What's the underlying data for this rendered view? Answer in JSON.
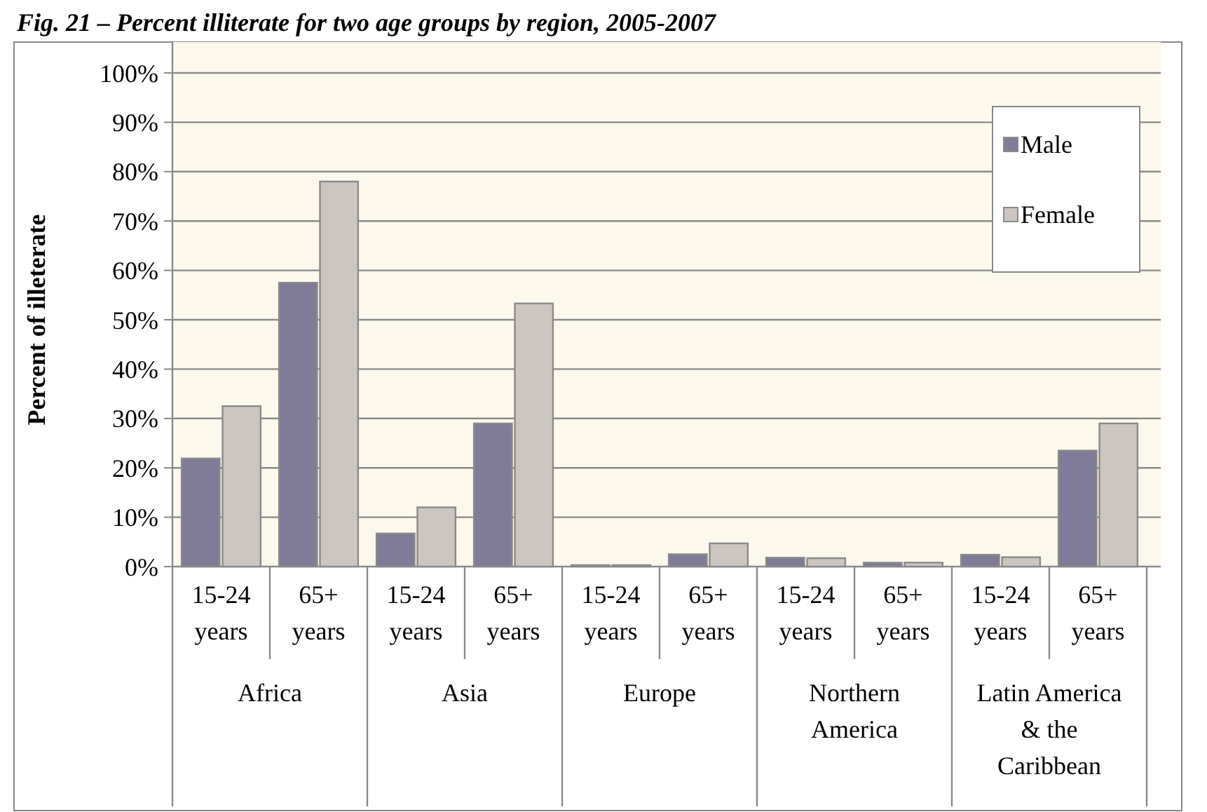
{
  "chart_data": {
    "type": "bar",
    "title": "Fig. 21 – Percent illiterate for two age groups by region, 2005-2007",
    "ylabel": "Percent of illeterate",
    "categories": [
      "15-24 years",
      "65+ years",
      "15-24 years",
      "65+ years",
      "15-24 years",
      "65+ years",
      "15-24 years",
      "65+ years",
      "15-24 years",
      "65+ years"
    ],
    "annotations": [
      "Africa",
      "Asia",
      "Europe",
      "Northern America",
      "Latin America & the Caribbean"
    ],
    "series": [
      {
        "name": "Male",
        "color": "#7f7b99",
        "values": [
          21.9,
          57.5,
          6.7,
          29.0,
          0.3,
          2.5,
          1.8,
          0.8,
          2.4,
          23.5
        ]
      },
      {
        "name": "Female",
        "color": "#ccc5c0",
        "values": [
          32.5,
          78.0,
          12.0,
          53.3,
          0.3,
          4.7,
          1.7,
          0.8,
          1.9,
          29.0
        ]
      }
    ],
    "ylim": [
      0,
      100
    ],
    "yticks": [
      {
        "value": 0,
        "label": "0%"
      },
      {
        "value": 10,
        "label": "10%"
      },
      {
        "value": 20,
        "label": "20%"
      },
      {
        "value": 30,
        "label": "30%"
      },
      {
        "value": 40,
        "label": "40%"
      },
      {
        "value": 50,
        "label": "50%"
      },
      {
        "value": 60,
        "label": "60%"
      },
      {
        "value": 70,
        "label": "70%"
      },
      {
        "value": 80,
        "label": "80%"
      },
      {
        "value": 90,
        "label": "90%"
      },
      {
        "value": 100,
        "label": "100%"
      }
    ],
    "grid": "y",
    "legend": "top right"
  }
}
